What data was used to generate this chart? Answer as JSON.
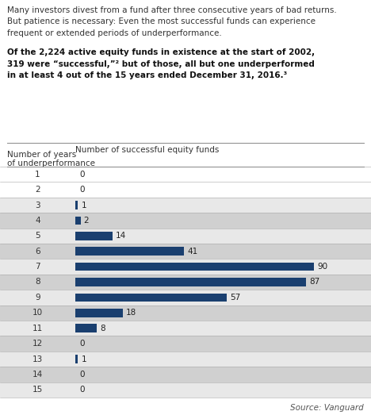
{
  "years": [
    1,
    2,
    3,
    4,
    5,
    6,
    7,
    8,
    9,
    10,
    11,
    12,
    13,
    14,
    15
  ],
  "values": [
    0,
    0,
    1,
    2,
    14,
    41,
    90,
    87,
    57,
    18,
    8,
    0,
    1,
    0,
    0
  ],
  "bar_color": "#1a3f6f",
  "xlim_max": 100,
  "row_colors": [
    "#ffffff",
    "#ffffff",
    "#ffffff",
    "#d4d4d4",
    "#d4d4d4",
    "#d4d4d4",
    "#d4d4d4",
    "#d4d4d4",
    "#d4d4d4",
    "#d4d4d4",
    "#d4d4d4",
    "#d4d4d4",
    "#d4d4d4",
    "#d4d4d4",
    "#d4d4d4"
  ],
  "title_lines": [
    "Many investors divest from a fund after three consecutive years of bad returns.",
    "But patience is necessary: Even the most successful funds can experience",
    "frequent or extended periods of underperformance."
  ],
  "subtitle_lines": [
    "Of the 2,224 active equity funds in existence at the start of 2002,",
    "319 were “successful,”² but of those, all but one underperformed",
    "in at least 4 out of the 15 years ended December 31, 2016.³"
  ],
  "col1_header_line1": "Number of years",
  "col1_header_line2": "of underperformance",
  "col2_header": "Number of successful equity funds",
  "source_text": "Source: Vanguard",
  "fig_bg": "#ffffff",
  "figw": 4.68,
  "figh": 5.23,
  "dpi": 100
}
